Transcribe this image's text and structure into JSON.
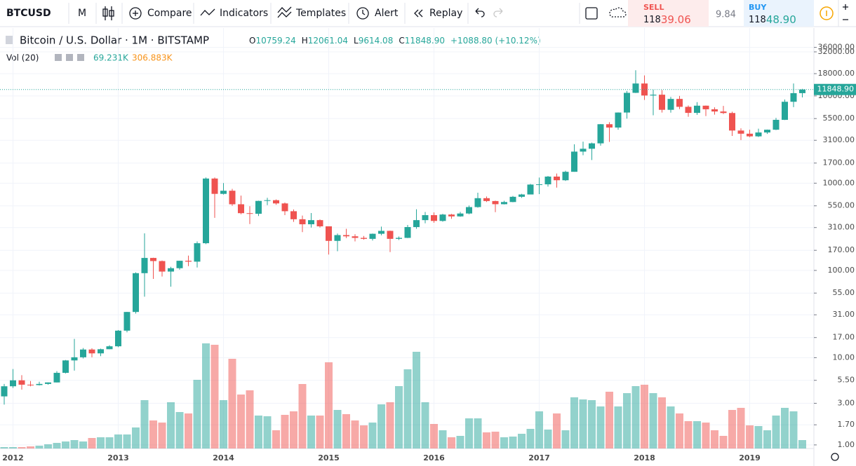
{
  "toolbar": {
    "symbol": "BTCUSD",
    "interval": "M",
    "compare": "Compare",
    "indicators": "Indicators",
    "templates": "Templates",
    "alert": "Alert",
    "replay": "Replay"
  },
  "trade": {
    "sell_label": "SELL",
    "sell_price_main": "118",
    "sell_price_big": "39.06",
    "spread": "9.84",
    "buy_label": "BUY",
    "buy_price_main": "118",
    "buy_price_big": "48.90"
  },
  "legend": {
    "symbol_title": "Bitcoin / U.S. Dollar · 1M · BITSTAMP",
    "ohlc": [
      {
        "key": "O",
        "value": "10759.24"
      },
      {
        "key": "H",
        "value": "12061.04"
      },
      {
        "key": "L",
        "value": "9614.08"
      },
      {
        "key": "C",
        "value": "11848.90"
      }
    ],
    "change": "+1088.80 (+10.12%)",
    "volume_title": "Vol (20)",
    "volume_value": "69.231K",
    "volume_ma": "306.883K"
  },
  "chart_data": {
    "type": "candlestick",
    "log_scale": true,
    "grid": true,
    "up_color": "#26a69a",
    "down_color": "#ef5350",
    "categories": [
      null,
      "2012",
      null,
      null,
      null,
      null,
      null,
      null,
      null,
      null,
      null,
      null,
      null,
      "2013",
      null,
      null,
      null,
      null,
      null,
      null,
      null,
      null,
      null,
      null,
      null,
      "2014",
      null,
      null,
      null,
      null,
      null,
      null,
      null,
      null,
      null,
      null,
      null,
      "2015",
      null,
      null,
      null,
      null,
      null,
      null,
      null,
      null,
      null,
      null,
      null,
      "2016",
      null,
      null,
      null,
      null,
      null,
      null,
      null,
      null,
      null,
      null,
      null,
      "2017",
      null,
      null,
      null,
      null,
      null,
      null,
      null,
      null,
      null,
      null,
      null,
      "2018",
      null,
      null,
      null,
      null,
      null,
      null,
      null,
      null,
      null,
      null,
      null,
      "2019",
      null,
      null,
      null,
      null,
      null,
      null
    ],
    "open": [
      3.6,
      4.7,
      5.5,
      4.9,
      4.85,
      5.0,
      5.2,
      6.7,
      9.3,
      10.1,
      12.4,
      11.2,
      12.5,
      13.5,
      20.4,
      33.4,
      93,
      139,
      128,
      97,
      106,
      129,
      126,
      205,
      1130,
      754,
      819,
      573,
      453,
      446,
      626,
      638,
      586,
      477,
      386,
      338,
      377,
      320,
      218,
      254,
      246,
      236,
      230,
      263,
      284,
      230,
      236,
      314,
      377,
      430,
      369,
      437,
      416,
      449,
      532,
      673,
      624,
      574,
      608,
      698,
      742,
      964,
      970,
      1190,
      1080,
      1350,
      2300,
      2480,
      2860,
      4740,
      4340,
      6450,
      10850,
      13880,
      10110,
      10330,
      6930,
      9240,
      7500,
      6390,
      7730,
      7030,
      6630,
      6370,
      4010,
      3690,
      3440,
      3810,
      4100,
      5320,
      8570,
      10759.24
    ],
    "high": [
      5.0,
      7.4,
      6.3,
      5.4,
      5.3,
      5.2,
      7.0,
      9.4,
      16.4,
      12.9,
      12.8,
      12.7,
      13.9,
      20.7,
      33.5,
      95,
      266,
      140,
      130,
      110,
      129,
      148,
      215,
      1163,
      1163,
      1003,
      860,
      720,
      545,
      630,
      680,
      650,
      600,
      500,
      425,
      455,
      384,
      320,
      265,
      300,
      260,
      248,
      265,
      318,
      286,
      245,
      332,
      502,
      467,
      462,
      445,
      444,
      469,
      555,
      778,
      704,
      630,
      628,
      714,
      754,
      979,
      1160,
      1210,
      1290,
      1390,
      2790,
      2990,
      2920,
      4760,
      5000,
      6470,
      11400,
      19670,
      17180,
      11780,
      11670,
      9750,
      10000,
      7770,
      8490,
      7760,
      7410,
      7680,
      6600,
      4250,
      4100,
      4210,
      4120,
      5600,
      9100,
      13880,
      12061.04
    ],
    "low": [
      2.9,
      4.5,
      4.3,
      4.7,
      4.8,
      4.9,
      5.2,
      6.6,
      7.1,
      9.8,
      10.1,
      10.4,
      12.5,
      13.2,
      19.5,
      32,
      50,
      80,
      85,
      65,
      102,
      112,
      108,
      200,
      400,
      740,
      550,
      440,
      340,
      420,
      560,
      565,
      430,
      360,
      275,
      310,
      310,
      152,
      166,
      235,
      215,
      225,
      220,
      253,
      162,
      223,
      235,
      300,
      347,
      352,
      362,
      390,
      412,
      440,
      523,
      608,
      465,
      570,
      604,
      678,
      742,
      750,
      915,
      890,
      1060,
      1350,
      2090,
      1840,
      2690,
      2970,
      4100,
      5500,
      10800,
      9000,
      6000,
      6450,
      6430,
      7050,
      5770,
      6070,
      5880,
      6100,
      6200,
      3480,
      3120,
      3370,
      3380,
      3670,
      4060,
      5300,
      7440,
      9614.08
    ],
    "close": [
      4.7,
      5.5,
      4.9,
      4.85,
      5.0,
      5.2,
      6.7,
      9.3,
      10.1,
      12.4,
      11.2,
      12.5,
      13.5,
      20.4,
      33.4,
      93,
      139,
      128,
      97,
      106,
      129,
      126,
      205,
      1130,
      754,
      819,
      573,
      453,
      446,
      626,
      638,
      586,
      477,
      386,
      338,
      377,
      320,
      218,
      254,
      246,
      236,
      230,
      263,
      284,
      230,
      236,
      314,
      377,
      430,
      369,
      437,
      416,
      449,
      532,
      673,
      624,
      574,
      608,
      698,
      742,
      964,
      970,
      1190,
      1080,
      1350,
      2300,
      2480,
      2860,
      4740,
      4340,
      6450,
      10850,
      13880,
      10110,
      10330,
      6930,
      9240,
      7500,
      6390,
      7730,
      7030,
      6630,
      6370,
      4010,
      3690,
      3440,
      3810,
      4100,
      5320,
      8570,
      10760,
      11848.9
    ],
    "volume": [
      11540,
      11540,
      11540,
      17310,
      23080,
      34620,
      46160,
      57700,
      69240,
      57700,
      86550,
      92320,
      92320,
      115400,
      115400,
      173100,
      398130,
      230800,
      213490,
      380820,
      300040,
      288500,
      565460,
      865500,
      853960,
      398130,
      738560,
      444290,
      478910,
      271190,
      265420,
      150020,
      276960,
      305810,
      530840,
      271190,
      271190,
      709710,
      317350,
      282730,
      230800,
      190410,
      213490,
      363510,
      380820,
      513530,
      652010,
      796260,
      380820,
      201950,
      150020,
      92320,
      103860,
      248110,
      248110,
      132710,
      138480,
      92320,
      98090,
      121170,
      161560,
      305810,
      155790,
      288500,
      150020,
      421210,
      403900,
      398130,
      346200,
      467370,
      346200,
      455830,
      513530,
      525070,
      455830,
      421210,
      346200,
      288500,
      225030,
      225030,
      213490,
      150020,
      103860,
      317350,
      334660,
      190410,
      184640,
      150020,
      271190,
      334660,
      305810,
      69231
    ],
    "volume_lim": [
      0,
      3462000
    ],
    "ylim": [
      0.91,
      60000
    ],
    "yticks": [
      {
        "value": 36000,
        "label": "36000.00"
      },
      {
        "value": 32000,
        "label": "32000.00"
      },
      {
        "value": 18000,
        "label": "18000.00"
      },
      {
        "value": 10000,
        "label": "10000.00"
      },
      {
        "value": 5500,
        "label": "5500.00"
      },
      {
        "value": 3100,
        "label": "3100.00"
      },
      {
        "value": 1700,
        "label": "1700.00"
      },
      {
        "value": 1000,
        "label": "1000.00"
      },
      {
        "value": 550,
        "label": "550.00"
      },
      {
        "value": 310,
        "label": "310.00"
      },
      {
        "value": 170,
        "label": "170.00"
      },
      {
        "value": 100,
        "label": "100.00"
      },
      {
        "value": 55,
        "label": "55.00"
      },
      {
        "value": 31,
        "label": "31.00"
      },
      {
        "value": 17,
        "label": "17.00"
      },
      {
        "value": 10,
        "label": "10.00"
      },
      {
        "value": 5.5,
        "label": "5.50"
      },
      {
        "value": 3,
        "label": "3.00"
      },
      {
        "value": 1.7,
        "label": "1.70"
      },
      {
        "value": 1,
        "label": "1.00"
      }
    ],
    "last_price_label": "11848.90"
  }
}
